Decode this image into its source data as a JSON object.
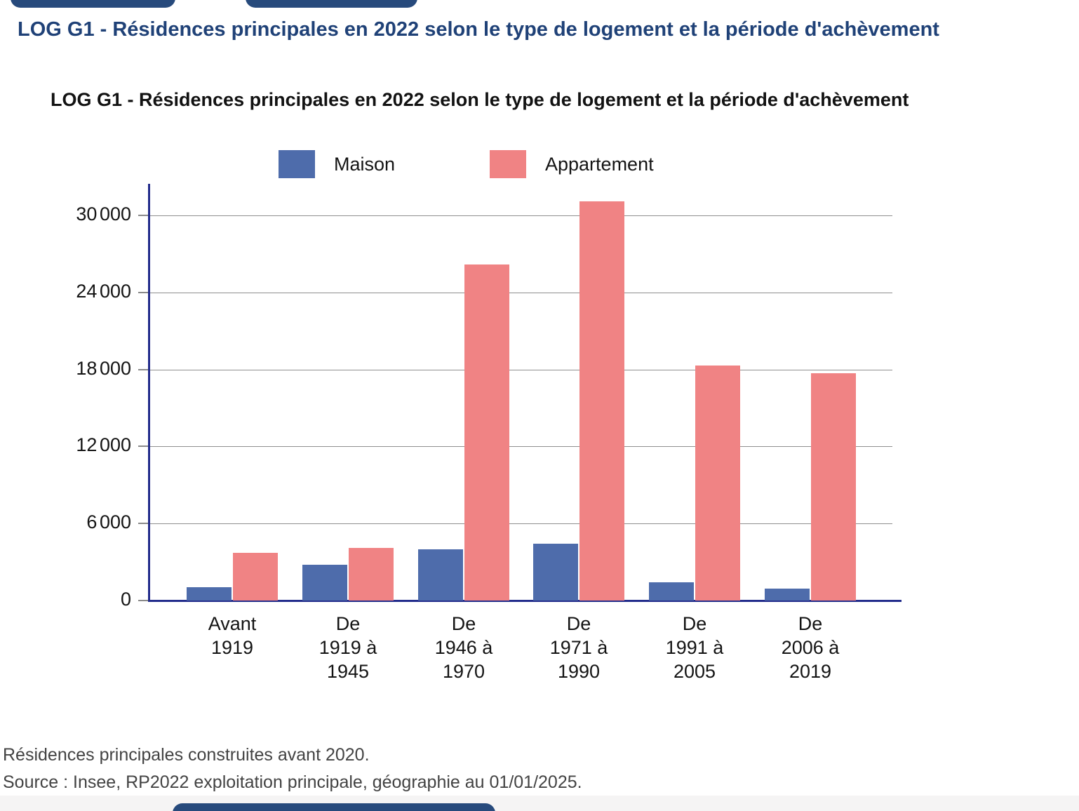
{
  "page": {
    "title": "LOG G1 - Résidences principales en 2022 selon le type de logement et la période d'achèvement",
    "note": "Résidences principales construites avant 2020.",
    "source": "Source : Insee, RP2022 exploitation principale, géographie au 01/01/2025."
  },
  "chart_data": {
    "type": "bar",
    "title": "LOG G1 - Résidences principales en 2022 selon le type de logement et la période d'achèvement",
    "categories": [
      "Avant 1919",
      "De 1919 à 1945",
      "De 1946 à 1970",
      "De 1971 à 1990",
      "De 1991 à 2005",
      "De 2006 à 2019"
    ],
    "category_lines": [
      [
        "Avant",
        "1919"
      ],
      [
        "De",
        "1919 à",
        "1945"
      ],
      [
        "De",
        "1946 à",
        "1970"
      ],
      [
        "De",
        "1971 à",
        "1990"
      ],
      [
        "De",
        "1991 à",
        "2005"
      ],
      [
        "De",
        "2006 à",
        "2019"
      ]
    ],
    "series": [
      {
        "name": "Maison",
        "color": "#4e6cab",
        "values": [
          1050,
          2800,
          4000,
          4400,
          1400,
          950
        ]
      },
      {
        "name": "Appartement",
        "color": "#f08384",
        "values": [
          3700,
          4100,
          26200,
          31100,
          18300,
          17700
        ]
      }
    ],
    "yticks": [
      0,
      6000,
      12000,
      18000,
      24000,
      30000
    ],
    "ytick_labels": [
      "0",
      "6 000",
      "12 000",
      "18 000",
      "24 000",
      "30 000"
    ],
    "ylim": [
      0,
      32500
    ],
    "grid": true,
    "legend_position": "top",
    "axis_color": "#232d8c",
    "grid_color": "#8f8f8f"
  }
}
